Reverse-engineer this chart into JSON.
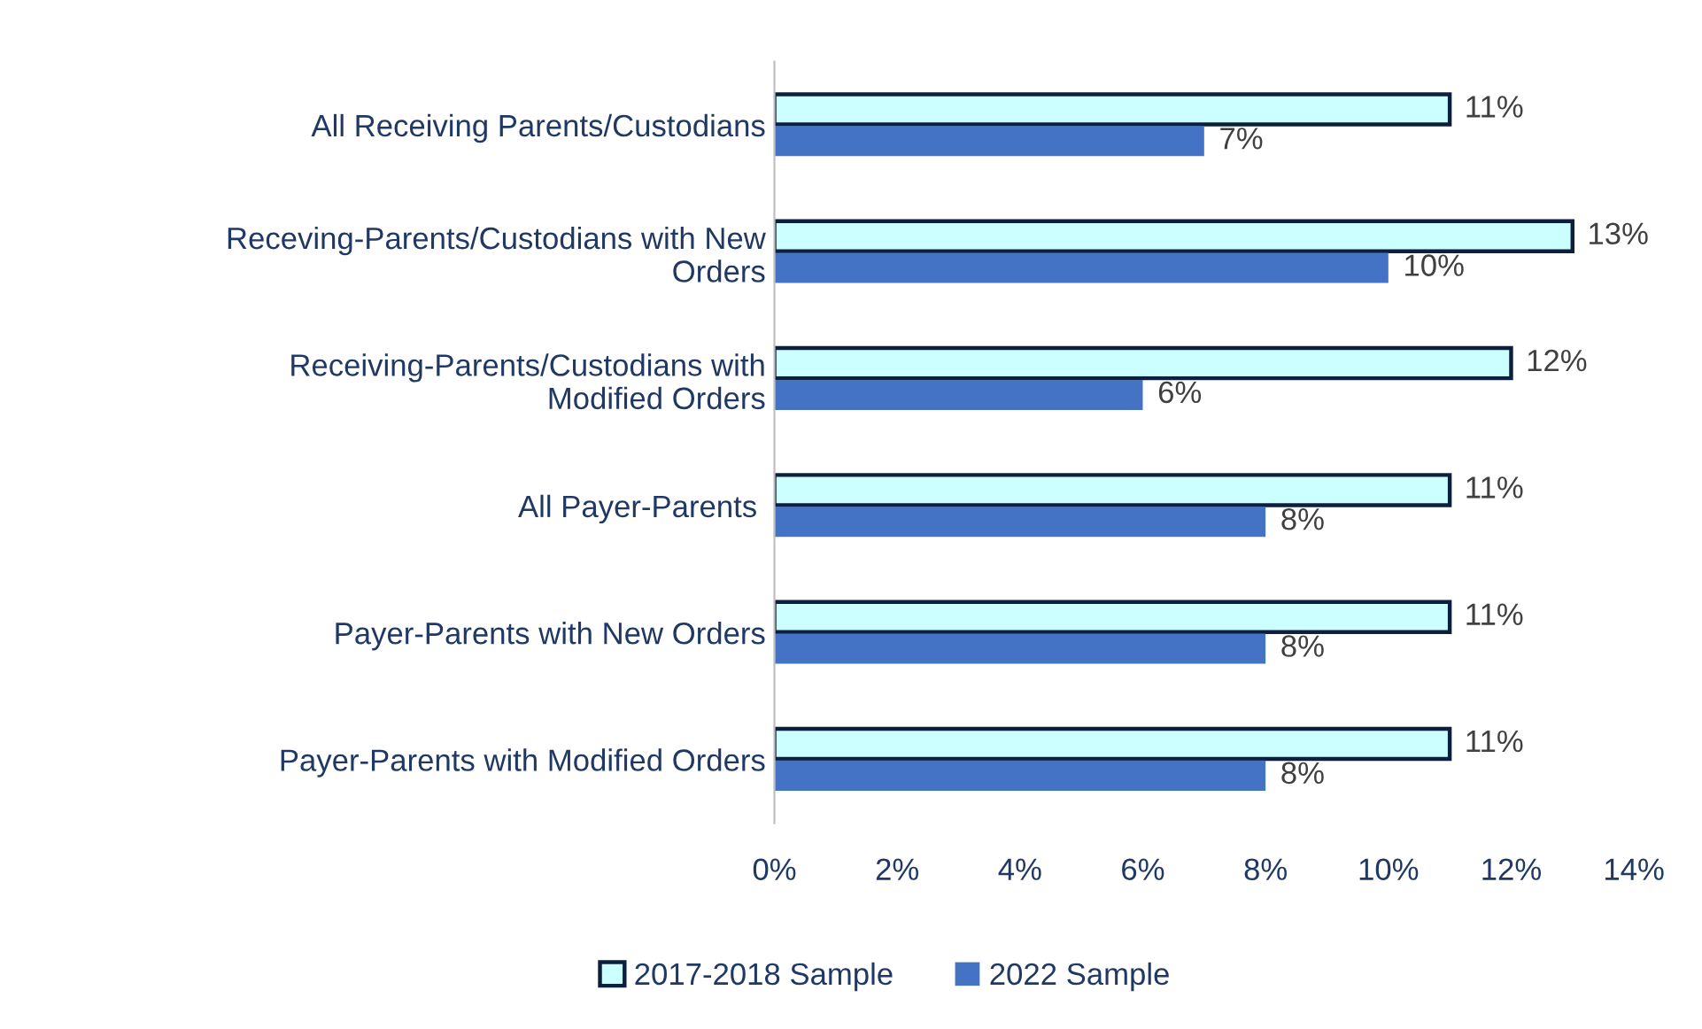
{
  "chart_data": {
    "type": "bar",
    "orientation": "horizontal",
    "categories": [
      "All Receiving Parents/Custodians",
      "Receving-Parents/Custodians with New\nOrders",
      "Receiving-Parents/Custodians with\nModified Orders",
      "All Payer-Parents ",
      "Payer-Parents with New Orders",
      "Payer-Parents with Modified Orders"
    ],
    "series": [
      {
        "name": "2017-2018 Sample",
        "color": "#ccffff",
        "values": [
          11,
          13,
          12,
          11,
          11,
          11
        ],
        "value_labels": [
          "11%",
          "13%",
          "12%",
          "11%",
          "11%",
          "11%"
        ]
      },
      {
        "name": "2022 Sample",
        "color": "#4472c4",
        "values": [
          7,
          10,
          6,
          8,
          8,
          8
        ],
        "value_labels": [
          "7%",
          "10%",
          "6%",
          "8%",
          "8%",
          "8%"
        ]
      }
    ],
    "xlim": [
      0,
      14
    ],
    "xticks": [
      {
        "value": 0,
        "label": "0%"
      },
      {
        "value": 2,
        "label": "2%"
      },
      {
        "value": 4,
        "label": "4%"
      },
      {
        "value": 6,
        "label": "6%"
      },
      {
        "value": 8,
        "label": "8%"
      },
      {
        "value": 10,
        "label": "10%"
      },
      {
        "value": 12,
        "label": "12%"
      },
      {
        "value": 14,
        "label": "14%"
      }
    ],
    "grid": false,
    "legend": "bottom"
  }
}
